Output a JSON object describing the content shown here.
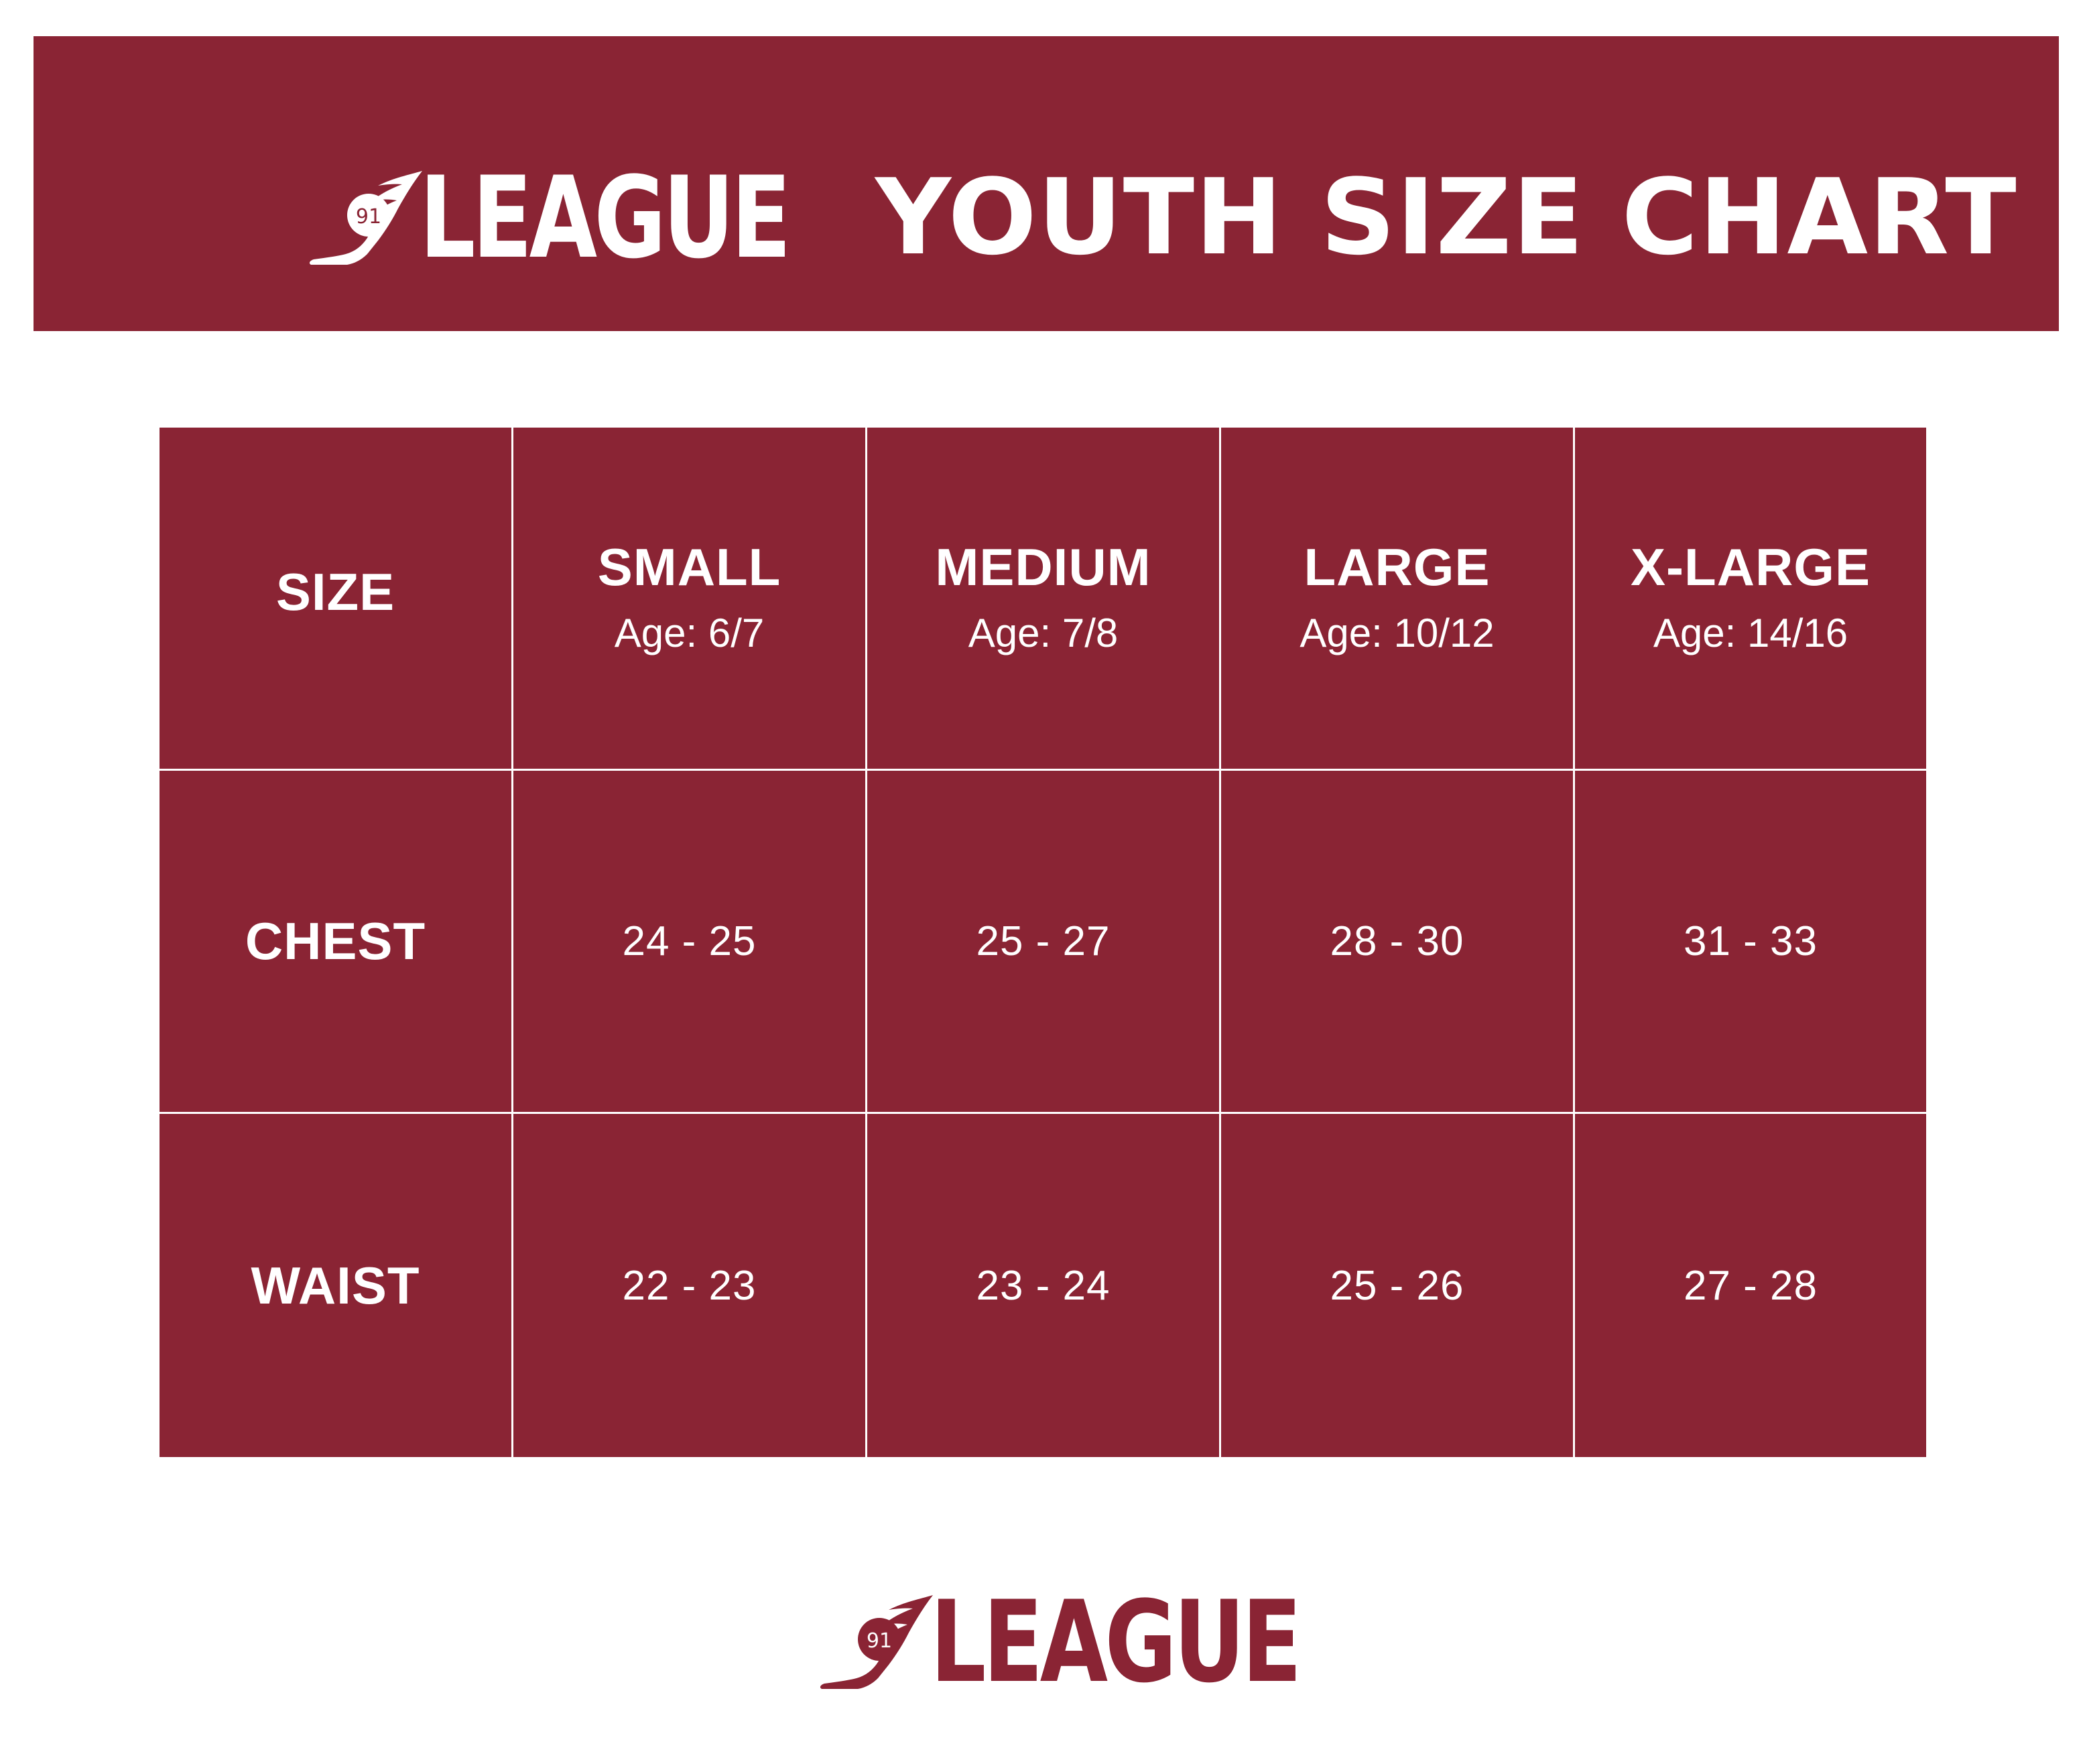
{
  "colors": {
    "brand": "#8a2434",
    "text_on_brand": "#ffffff",
    "background": "#ffffff"
  },
  "header": {
    "logo": {
      "icon": "winged-shoe-icon",
      "badge_number": "91",
      "word": "LEAGUE"
    },
    "title": "YOUTH SIZE CHART"
  },
  "table": {
    "corner_label": "SIZE",
    "columns": [
      {
        "name": "SMALL",
        "age": "Age: 6/7"
      },
      {
        "name": "MEDIUM",
        "age": "Age: 7/8"
      },
      {
        "name": "LARGE",
        "age": "Age: 10/12"
      },
      {
        "name": "X-LARGE",
        "age": "Age: 14/16"
      }
    ],
    "rows": [
      {
        "label": "CHEST",
        "values": [
          "24 - 25",
          "25 - 27",
          "28 - 30",
          "31 - 33"
        ]
      },
      {
        "label": "WAIST",
        "values": [
          "22 - 23",
          "23 - 24",
          "25 - 26",
          "27 - 28"
        ]
      }
    ]
  },
  "footer": {
    "logo": {
      "icon": "winged-shoe-icon",
      "badge_number": "91",
      "word": "LEAGUE"
    }
  }
}
